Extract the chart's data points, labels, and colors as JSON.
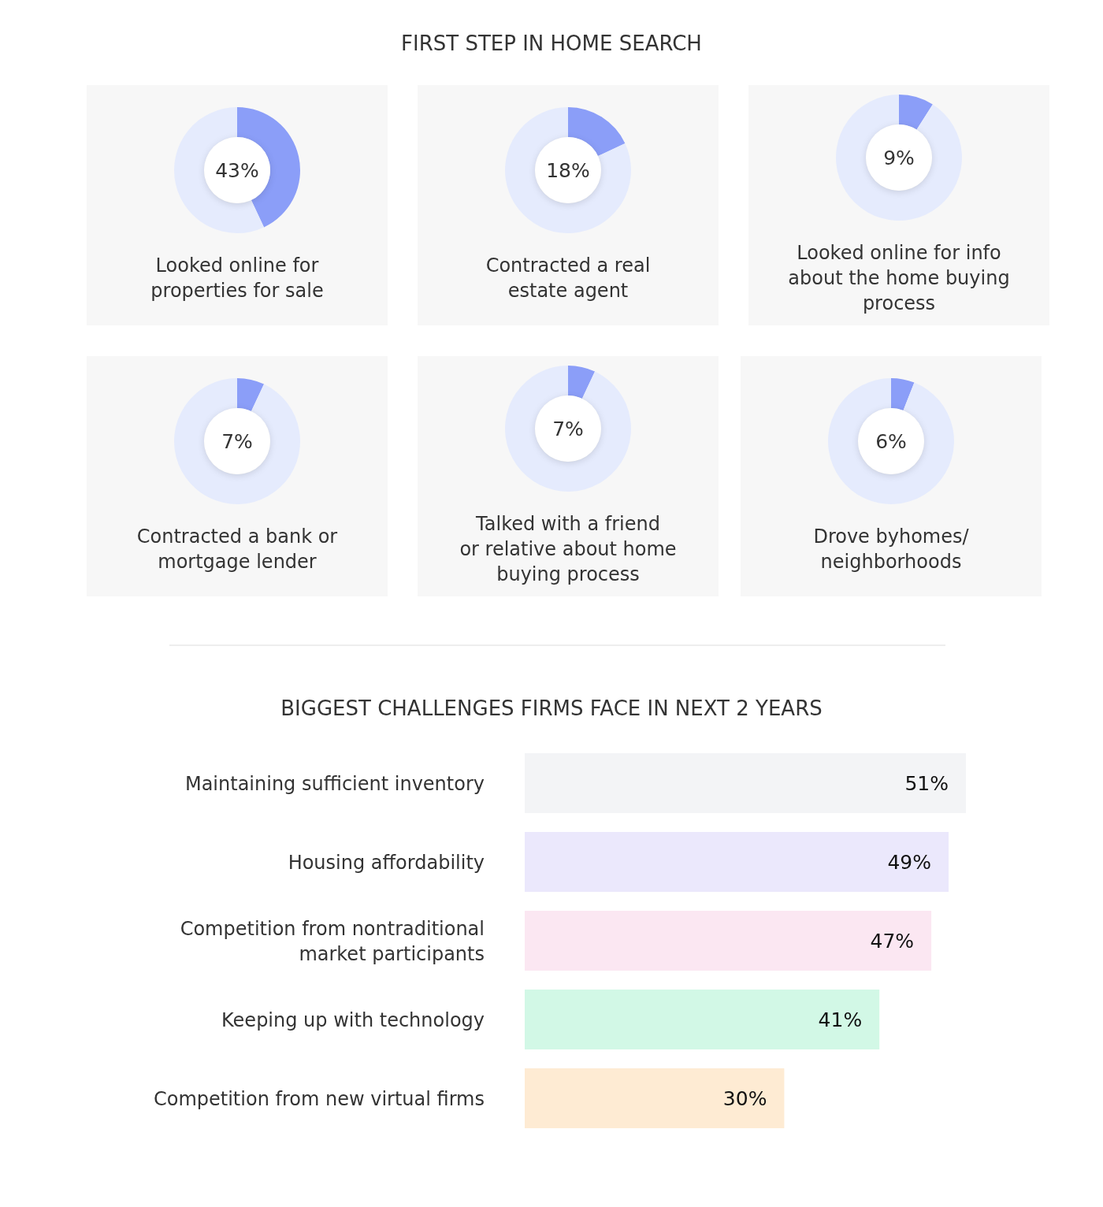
{
  "chart_data": [
    {
      "type": "other",
      "title": "FIRST STEP IN HOME SEARCH"
    },
    {
      "type": "donut",
      "title": "Looked online for properties for sale",
      "categories": [
        null,
        null
      ],
      "values": [
        43,
        57
      ],
      "colors": [
        "#8b9ef8",
        "#e5ebfd"
      ],
      "annotations": [
        "43%"
      ]
    },
    {
      "type": "donut",
      "title": "Contracted a real estate agent",
      "categories": [
        null,
        null
      ],
      "values": [
        18,
        82
      ],
      "colors": [
        "#8b9ef8",
        "#e5ebfd"
      ],
      "annotations": [
        "18%"
      ]
    },
    {
      "type": "donut",
      "title": "Looked online for info about the home buying process",
      "categories": [
        null,
        null
      ],
      "values": [
        9,
        91
      ],
      "colors": [
        "#8b9ef8",
        "#e5ebfd"
      ],
      "annotations": [
        "9%"
      ]
    },
    {
      "type": "donut",
      "title": "Contracted a bank or mortgage lender",
      "categories": [
        null,
        null
      ],
      "values": [
        7,
        93
      ],
      "colors": [
        "#8b9ef8",
        "#e5ebfd"
      ],
      "annotations": [
        "7%"
      ]
    },
    {
      "type": "donut",
      "title": "Talked with a friend or relative about home buying process",
      "categories": [
        null,
        null
      ],
      "values": [
        7,
        93
      ],
      "colors": [
        "#8b9ef8",
        "#e5ebfd"
      ],
      "annotations": [
        "7%"
      ]
    },
    {
      "type": "donut",
      "title": "Drove byhomes/ neighborhoods",
      "categories": [
        null,
        null
      ],
      "values": [
        6,
        94
      ],
      "colors": [
        "#8b9ef8",
        "#e5ebfd"
      ],
      "annotations": [
        "6%"
      ]
    },
    {
      "type": "bar",
      "orientation": "horizontal",
      "title": "BIGGEST CHALLENGES FIRMS FACE IN NEXT 2 YEARS",
      "categories": [
        "Maintaining sufficient inventory",
        "Housing affordability",
        "Competition from nontraditional market participants",
        "Keeping up with technology",
        "Competition from new virtual firms"
      ],
      "values": [
        51,
        49,
        47,
        41,
        30
      ],
      "colors": [
        "#f3f4f6",
        "#ebe8fc",
        "#fbe7f2",
        "#d2f8e6",
        "#feebd3"
      ],
      "value_labels": [
        "51%",
        "49%",
        "47%",
        "41%",
        "30%"
      ]
    }
  ]
}
